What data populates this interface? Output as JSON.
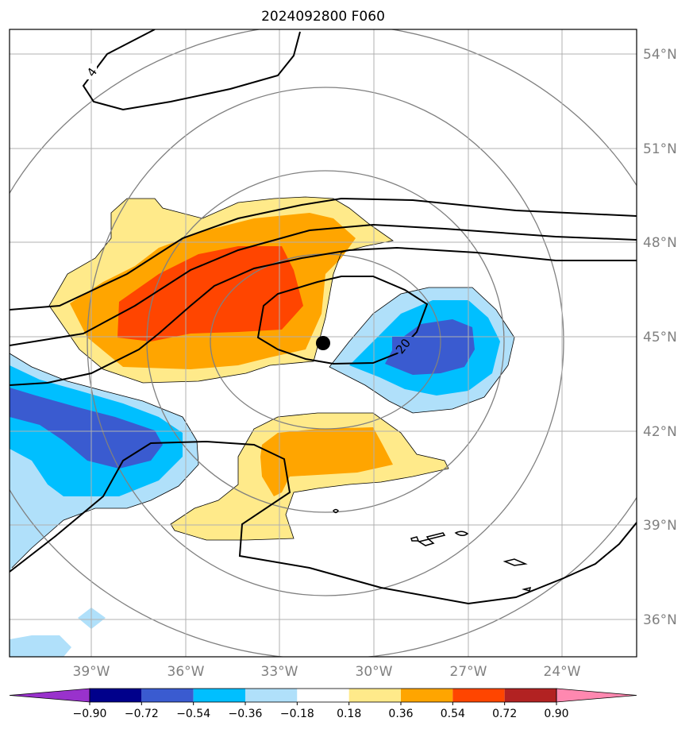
{
  "title": "2024092800 F060",
  "map": {
    "lon_labels": [
      "39°W",
      "36°W",
      "33°W",
      "30°W",
      "27°W",
      "24°W"
    ],
    "lat_labels": [
      "54°N",
      "51°N",
      "48°N",
      "45°N",
      "42°N",
      "39°N",
      "36°N"
    ],
    "contour_labels": [
      "4",
      "20"
    ],
    "storm_center": {
      "lon": -31.5,
      "lat": 44.8
    }
  },
  "colorbar": {
    "ticks": [
      "−0.90",
      "−0.72",
      "−0.54",
      "−0.36",
      "−0.18",
      "0.18",
      "0.36",
      "0.54",
      "0.72",
      "0.90"
    ],
    "colors": [
      "#9932cc",
      "#00008b",
      "#3a5bd0",
      "#00bfff",
      "#b0e0fa",
      "#ffffff",
      "#ffea8a",
      "#ffa500",
      "#ff4500",
      "#b22222",
      "#ff88b0"
    ]
  }
}
